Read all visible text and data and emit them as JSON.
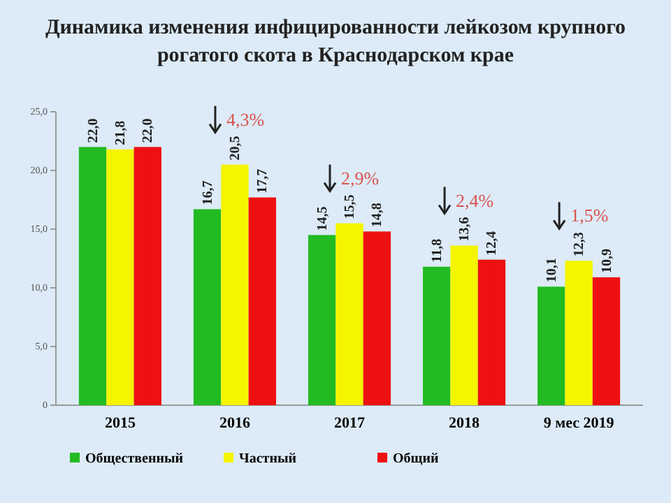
{
  "chart_data": {
    "type": "bar",
    "title": "Динамика изменения инфицированности лейкозом крупного рогатого скота в Краснодарском крае",
    "categories": [
      "2015",
      "2016",
      "2017",
      "2018",
      "9 мес 2019"
    ],
    "series": [
      {
        "name": "Общественный",
        "color": "#22bb22",
        "values": [
          22.0,
          16.7,
          14.5,
          11.8,
          10.1
        ],
        "value_labels": [
          "22,0",
          "16,7",
          "14,5",
          "11,8",
          "10,1"
        ]
      },
      {
        "name": "Частный",
        "color": "#f5f500",
        "values": [
          21.8,
          20.5,
          15.5,
          13.6,
          12.3
        ],
        "value_labels": [
          "21,8",
          "20,5",
          "15,5",
          "13,6",
          "12,3"
        ]
      },
      {
        "name": "Общий",
        "color": "#ee1111",
        "values": [
          22.0,
          17.7,
          14.8,
          12.4,
          10.9
        ],
        "value_labels": [
          "22,0",
          "17,7",
          "14,8",
          "12,4",
          "10,9"
        ]
      }
    ],
    "ylim": [
      0,
      25
    ],
    "yticks": [
      {
        "value": 0,
        "label": "0"
      },
      {
        "value": 5,
        "label": "5,0"
      },
      {
        "value": 10,
        "label": "10,0"
      },
      {
        "value": 15,
        "label": "15,0"
      },
      {
        "value": 20,
        "label": "20,0"
      },
      {
        "value": 25,
        "label": "25,0"
      }
    ],
    "annotations": [
      "4,3%",
      "2,9%",
      "2,4%",
      "1,5%"
    ],
    "legend": "bottom",
    "grid": false
  }
}
